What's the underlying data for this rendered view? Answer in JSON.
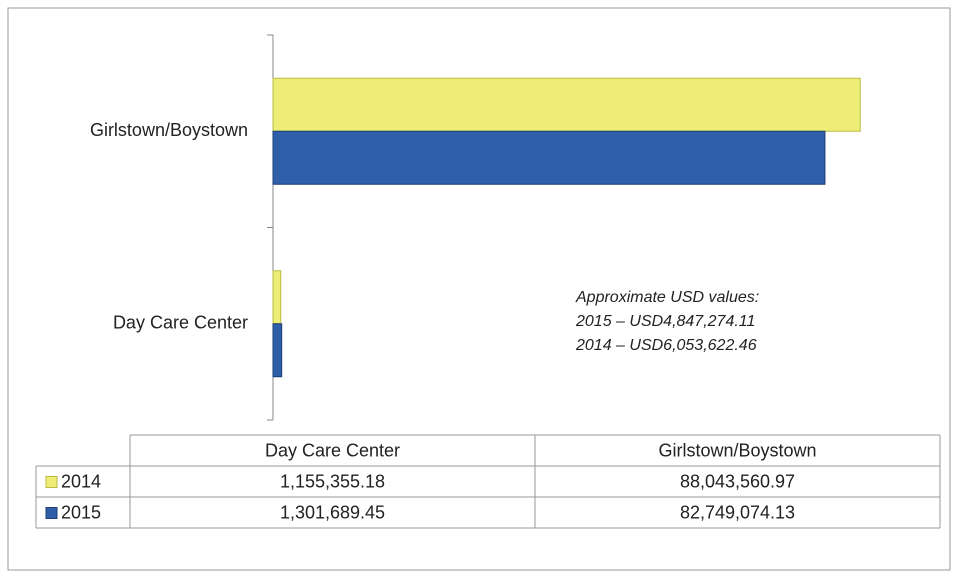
{
  "chart_data": {
    "type": "bar",
    "orientation": "horizontal",
    "categories": [
      "Day Care Center",
      "Girlstown/Boystown"
    ],
    "series": [
      {
        "name": "2014",
        "color": "#eeee77",
        "values": [
          1155355.18,
          88043560.97
        ],
        "value_labels": [
          "1,155,355.18",
          "88,043,560.97"
        ]
      },
      {
        "name": "2015",
        "color": "#2e5fa8",
        "values": [
          1301689.45,
          82749074.13
        ],
        "value_labels": [
          "1,301,689.45",
          "82,749,074.13"
        ]
      }
    ],
    "xlim": [
      0,
      100000000
    ],
    "annotations": [
      "Approximate USD values:",
      "2015 – USD4,847,274.11",
      "2014 – USD6,053,622.46"
    ],
    "data_table": true
  }
}
